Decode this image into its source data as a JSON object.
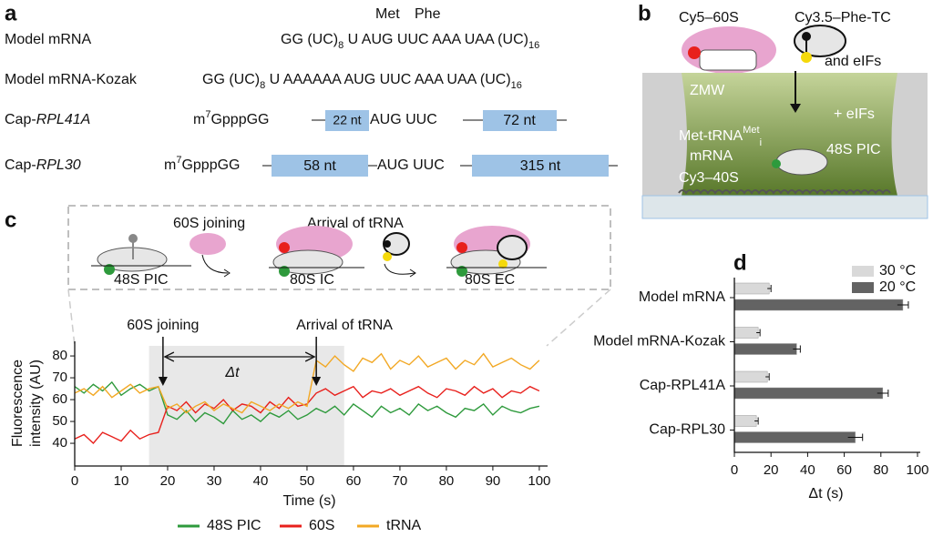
{
  "panel_labels": [
    "a",
    "b",
    "c",
    "d"
  ],
  "panel_a": {
    "codon_labels": [
      "Met",
      "Phe"
    ],
    "model": {
      "name": "Model mRNA",
      "s1": "GG (UC)",
      "sub1": "8",
      "s2": " U AUG UUC AAA UAA (UC)",
      "sub2": "16"
    },
    "kozak": {
      "name": "Model mRNA-Kozak",
      "s1": "GG (UC)",
      "sub1": "8",
      "s2": " U AAAAAA AUG UUC AAA UAA (UC)",
      "sub2": "16"
    },
    "rpl41a": {
      "prefix": "Cap-",
      "gene": "RPL41A",
      "cap": "m",
      "sup": "7",
      "rest": "GpppGG",
      "utr5": "22 nt",
      "codons": "AUG UUC",
      "utr3": "72 nt"
    },
    "rpl30": {
      "prefix": "Cap-",
      "gene": "RPL30",
      "cap": "m",
      "sup": "7",
      "rest": "GpppGG",
      "utr5": "58 nt",
      "codons": "AUG UUC",
      "utr3": "315 nt"
    }
  },
  "panel_b": {
    "cy5": "Cy5–60S",
    "cy35": "Cy3.5–Phe-TC",
    "eifs_top": "and eIFs",
    "zmw": "ZMW",
    "eifs": "+ eIFs",
    "trna": "Met-tRNA",
    "trna_sup": "Met",
    "trna_sub": "i",
    "mrna": "mRNA",
    "pic": "48S PIC",
    "cy3": "Cy3–40S"
  },
  "panel_c_scheme": {
    "step1": "60S joining",
    "step2": "Arrival of tRNA",
    "s1": "48S PIC",
    "s2": "80S IC",
    "s3": "80S EC"
  },
  "chart_data": [
    {
      "type": "line",
      "xlabel": "Time (s)",
      "ylabel_lines": [
        "Fluorescence",
        "intensity (AU)"
      ],
      "xlim": [
        0,
        101
      ],
      "ylim": [
        29.6,
        86.7
      ],
      "xticks": [
        0,
        10,
        20,
        30,
        40,
        50,
        60,
        70,
        80,
        90,
        100
      ],
      "yticks": [
        40,
        50,
        60,
        70,
        80
      ],
      "shade": [
        16,
        58
      ],
      "events": [
        {
          "x": 19,
          "label": "60S joining"
        },
        {
          "x": 52,
          "label": "Arrival of tRNA"
        }
      ],
      "interval_label": "Δt",
      "x": [
        0,
        2,
        4,
        6,
        8,
        10,
        12,
        14,
        16,
        18,
        20,
        22,
        24,
        26,
        28,
        30,
        32,
        34,
        36,
        38,
        40,
        42,
        44,
        46,
        48,
        50,
        52,
        54,
        56,
        58,
        60,
        62,
        64,
        66,
        68,
        70,
        72,
        74,
        76,
        78,
        80,
        82,
        84,
        86,
        88,
        90,
        92,
        94,
        96,
        98,
        100
      ],
      "series": [
        {
          "name": "48S PIC",
          "color": "#2e9a3c",
          "values": [
            66,
            63,
            67,
            64,
            68,
            62,
            65,
            67,
            64,
            66,
            53,
            51,
            55,
            50,
            54,
            52,
            49,
            55,
            51,
            53,
            50,
            54,
            52,
            55,
            51,
            53,
            56,
            54,
            57,
            53,
            58,
            55,
            52,
            57,
            54,
            56,
            53,
            58,
            55,
            57,
            54,
            52,
            56,
            55,
            58,
            53,
            57,
            55,
            54,
            56,
            57
          ]
        },
        {
          "name": "60S",
          "color": "#e8201c",
          "values": [
            42,
            44,
            40,
            45,
            43,
            41,
            46,
            42,
            44,
            45,
            57,
            55,
            59,
            54,
            58,
            56,
            60,
            55,
            58,
            57,
            54,
            59,
            56,
            61,
            57,
            58,
            63,
            65,
            62,
            64,
            66,
            61,
            64,
            63,
            65,
            62,
            64,
            66,
            63,
            61,
            65,
            64,
            62,
            66,
            63,
            65,
            61,
            64,
            63,
            66,
            64
          ]
        },
        {
          "name": "tRNA",
          "color": "#f2a824",
          "values": [
            63,
            65,
            62,
            66,
            61,
            64,
            67,
            63,
            65,
            66,
            56,
            58,
            54,
            57,
            59,
            55,
            58,
            56,
            54,
            59,
            57,
            55,
            58,
            56,
            59,
            57,
            78,
            75,
            80,
            76,
            73,
            79,
            77,
            81,
            74,
            78,
            76,
            80,
            75,
            77,
            79,
            74,
            78,
            76,
            81,
            75,
            77,
            79,
            76,
            74,
            78
          ]
        }
      ]
    },
    {
      "type": "bar",
      "orientation": "horizontal",
      "xlabel": "Δt (s)",
      "xlim": [
        0,
        100
      ],
      "xticks": [
        0,
        20,
        40,
        60,
        80,
        100
      ],
      "categories": [
        "Model mRNA",
        "Model mRNA-Kozak",
        "Cap-RPL41A",
        "Cap-RPL30"
      ],
      "series": [
        {
          "name": "30 °C",
          "color": "#d9d9d9",
          "values": [
            19,
            13,
            18,
            12
          ],
          "errors": [
            1,
            1,
            1,
            1
          ]
        },
        {
          "name": "20 °C",
          "color": "#636363",
          "values": [
            92,
            34,
            81,
            66
          ],
          "errors": [
            3,
            2,
            3,
            4
          ]
        }
      ]
    }
  ]
}
